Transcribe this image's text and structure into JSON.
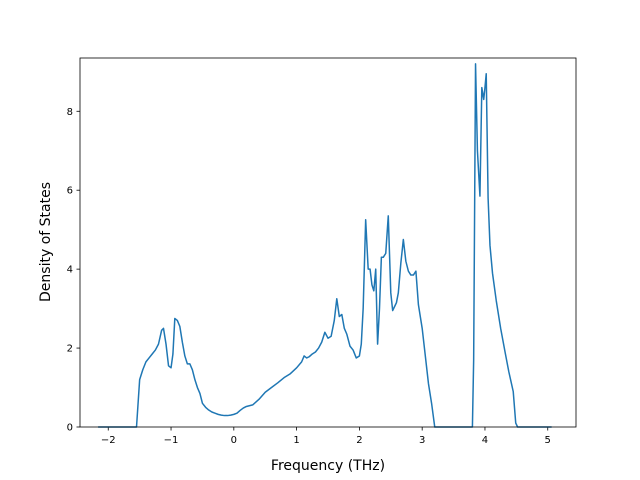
{
  "chart_data": {
    "type": "line",
    "title": "",
    "xlabel": "Frequency (THz)",
    "ylabel": "Density of States",
    "xlim": [
      -2.45,
      5.45
    ],
    "ylim": [
      0,
      9.35
    ],
    "x_ticks": [
      -2,
      -1,
      0,
      1,
      2,
      3,
      4,
      5
    ],
    "y_ticks": [
      0,
      2,
      4,
      6,
      8
    ],
    "x_tick_labels": [
      "−2",
      "−1",
      "0",
      "1",
      "2",
      "3",
      "4",
      "5"
    ],
    "y_tick_labels": [
      "0",
      "2",
      "4",
      "6",
      "8"
    ],
    "grid": false,
    "legend": "none",
    "colors": {
      "line": "#1f77b4",
      "axes": "#000000",
      "background": "#ffffff"
    },
    "series": [
      {
        "x": [
          -2.15,
          -1.55,
          -1.5,
          -1.45,
          -1.4,
          -1.35,
          -1.3,
          -1.25,
          -1.2,
          -1.15,
          -1.12,
          -1.08,
          -1.04,
          -1.0,
          -0.97,
          -0.94,
          -0.9,
          -0.86,
          -0.82,
          -0.78,
          -0.74,
          -0.7,
          -0.66,
          -0.62,
          -0.58,
          -0.54,
          -0.5,
          -0.45,
          -0.4,
          -0.35,
          -0.3,
          -0.25,
          -0.2,
          -0.15,
          -0.1,
          -0.05,
          0.0,
          0.05,
          0.1,
          0.15,
          0.2,
          0.3,
          0.4,
          0.5,
          0.6,
          0.7,
          0.8,
          0.9,
          1.0,
          1.08,
          1.12,
          1.16,
          1.2,
          1.25,
          1.3,
          1.35,
          1.4,
          1.45,
          1.5,
          1.55,
          1.6,
          1.64,
          1.68,
          1.72,
          1.76,
          1.8,
          1.85,
          1.9,
          1.95,
          2.0,
          2.03,
          2.06,
          2.1,
          2.14,
          2.17,
          2.2,
          2.23,
          2.26,
          2.29,
          2.32,
          2.35,
          2.38,
          2.42,
          2.46,
          2.5,
          2.53,
          2.56,
          2.59,
          2.62,
          2.66,
          2.7,
          2.74,
          2.78,
          2.82,
          2.86,
          2.9,
          2.94,
          2.97,
          3.0,
          3.05,
          3.1,
          3.15,
          3.2,
          3.22,
          3.25,
          3.5,
          3.8,
          3.82,
          3.85,
          3.88,
          3.92,
          3.95,
          3.98,
          4.0,
          4.02,
          4.05,
          4.08,
          4.12,
          4.18,
          4.25,
          4.32,
          4.38,
          4.45,
          4.49,
          4.52,
          5.05
        ],
        "y": [
          0,
          0,
          1.2,
          1.45,
          1.65,
          1.75,
          1.85,
          1.95,
          2.1,
          2.45,
          2.5,
          2.1,
          1.55,
          1.5,
          1.85,
          2.75,
          2.7,
          2.55,
          2.15,
          1.8,
          1.6,
          1.6,
          1.45,
          1.2,
          1.0,
          0.85,
          0.6,
          0.5,
          0.43,
          0.38,
          0.35,
          0.32,
          0.3,
          0.29,
          0.29,
          0.3,
          0.32,
          0.35,
          0.42,
          0.48,
          0.52,
          0.56,
          0.7,
          0.88,
          1.0,
          1.12,
          1.25,
          1.35,
          1.5,
          1.65,
          1.8,
          1.75,
          1.78,
          1.85,
          1.9,
          2.0,
          2.15,
          2.4,
          2.25,
          2.3,
          2.7,
          3.25,
          2.8,
          2.85,
          2.5,
          2.35,
          2.05,
          1.95,
          1.75,
          1.8,
          2.1,
          3.0,
          5.25,
          4.0,
          4.0,
          3.6,
          3.45,
          4.0,
          2.1,
          3.0,
          4.3,
          4.3,
          4.4,
          5.35,
          3.4,
          2.95,
          3.05,
          3.15,
          3.4,
          4.15,
          4.75,
          4.2,
          3.95,
          3.85,
          3.85,
          3.95,
          3.1,
          2.8,
          2.5,
          1.8,
          1.1,
          0.6,
          0,
          0,
          0,
          0,
          0,
          1.7,
          9.2,
          7.0,
          5.85,
          8.6,
          8.3,
          8.6,
          8.95,
          5.8,
          4.6,
          3.9,
          3.2,
          2.5,
          1.9,
          1.4,
          0.9,
          0.1,
          0,
          0
        ]
      }
    ]
  }
}
